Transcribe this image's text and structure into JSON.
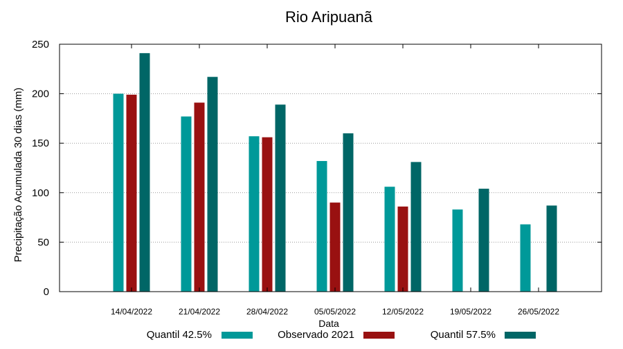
{
  "chart_data": {
    "type": "bar",
    "title": "Rio Aripuanã",
    "xlabel": "Data",
    "ylabel": "Precipitação Acumulada 30 dias (mm)",
    "ylim": [
      0,
      250
    ],
    "yticks": [
      "0",
      "50",
      "100",
      "150",
      "200",
      "250"
    ],
    "categories": [
      "14/04/2022",
      "21/04/2022",
      "28/04/2022",
      "05/05/2022",
      "12/05/2022",
      "19/05/2022",
      "26/05/2022"
    ],
    "grid": "horizontal dotted",
    "legend_position": "bottom",
    "series": [
      {
        "name": "Quantil 42.5%",
        "color": "#009999",
        "values": [
          200,
          177,
          157,
          132,
          106,
          83,
          68
        ]
      },
      {
        "name": "Observado 2021",
        "color": "#991111",
        "values": [
          199,
          191,
          156,
          90,
          86,
          null,
          null
        ]
      },
      {
        "name": "Quantil 57.5%",
        "color": "#006666",
        "values": [
          241,
          217,
          189,
          160,
          131,
          104,
          87
        ]
      }
    ]
  }
}
